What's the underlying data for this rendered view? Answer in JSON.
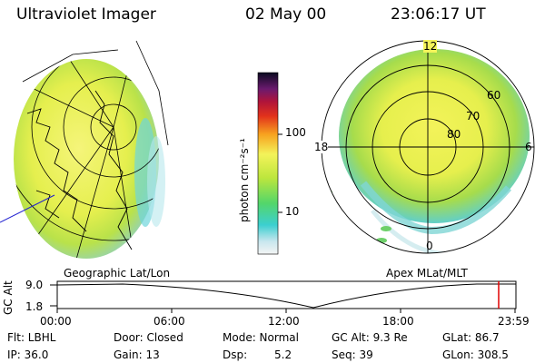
{
  "header": {
    "instrument": "Ultraviolet Imager",
    "date": "02 May 00",
    "time": "23:06:17 UT"
  },
  "colorbar": {
    "unit": "photon cm⁻²s⁻¹",
    "ticks": [
      "100",
      "10"
    ]
  },
  "left_panel": {
    "label": "Geographic Lat/Lon"
  },
  "right_panel": {
    "label": "Apex MLat/MLT",
    "mlt_labels": [
      "12",
      "18",
      "6",
      "0"
    ],
    "lat_labels": [
      "60",
      "70",
      "80"
    ]
  },
  "altitude_plot": {
    "ylabel": "GC Alt",
    "yticks": [
      "9.0",
      "1.8"
    ],
    "xticks": [
      "00:00",
      "06:00",
      "12:00",
      "18:00",
      "23:59"
    ]
  },
  "info": {
    "flt": "Flt: LBHL",
    "ip": "IP: 36.0",
    "door": "Door: Closed",
    "gain": "Gain: 13",
    "mode": "Mode: Normal",
    "dsp_label": "Dsp:",
    "dsp_value": "5.2",
    "gc_alt": "GC Alt: 9.3 Re",
    "seq": "Seq: 39",
    "glat": "GLat: 86.7",
    "glon": "GLon: 308.5"
  }
}
